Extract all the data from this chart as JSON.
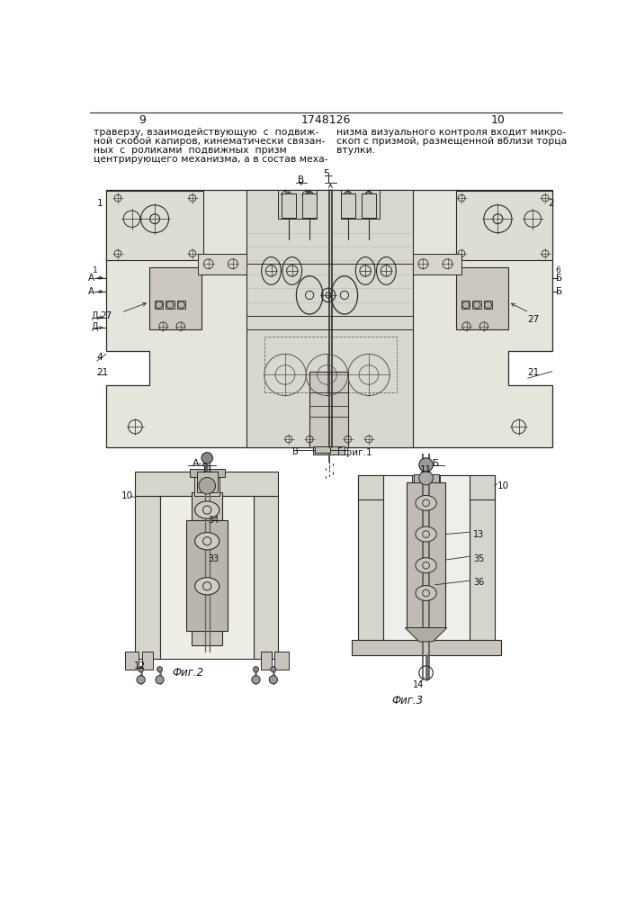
{
  "page_bg": "#ffffff",
  "text_color": "#1a1a1a",
  "page_num_left": "9",
  "page_num_center": "1748126",
  "page_num_right": "10",
  "left_text_lines": [
    "траверзу, взаимодействующую  с  подвиж-",
    "ной скобой капиров, кинематически связан-",
    "ных  с  роликами  подвижных  призм",
    "центрирующего механизма, а в состав меха-"
  ],
  "right_text_lines": [
    "низма визуального контроля входит микро-",
    "скоп с призмой, размещенной вблизи торца",
    "втулки."
  ],
  "draw_color": "#2a2a2a",
  "hatch_color": "#555555",
  "light_fill": "#e0e0d8",
  "mid_fill": "#c8c8be",
  "dark_fill": "#a0a098"
}
